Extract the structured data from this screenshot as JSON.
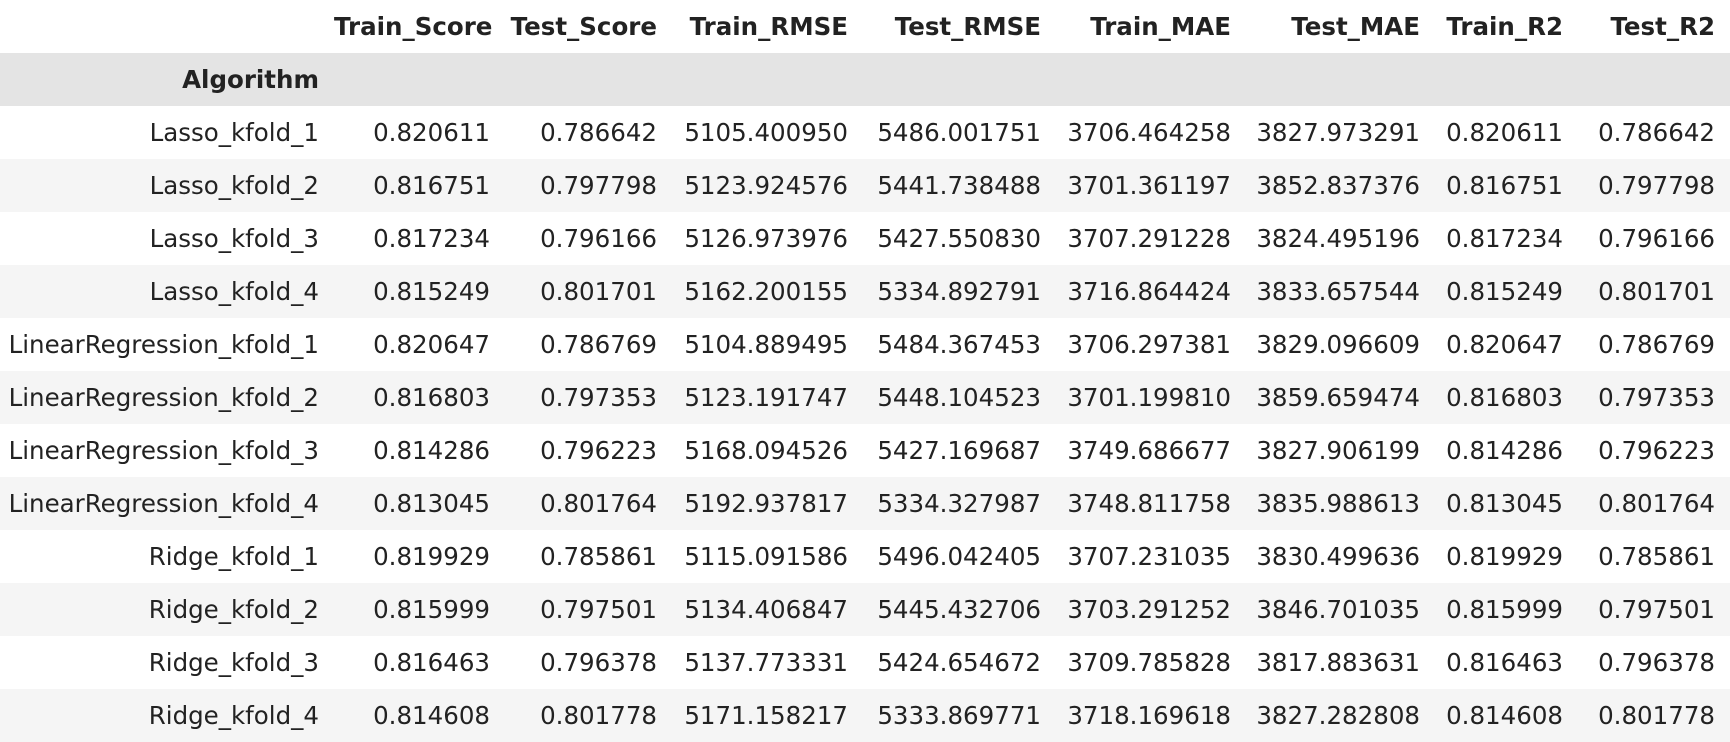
{
  "table": {
    "index_name": "Algorithm",
    "columns": [
      "Train_Score",
      "Test_Score",
      "Train_RMSE",
      "Test_RMSE",
      "Train_MAE",
      "Test_MAE",
      "Train_R2",
      "Test_R2"
    ],
    "rows": [
      {
        "index": "Lasso_kfold_1",
        "values": [
          "0.820611",
          "0.786642",
          "5105.400950",
          "5486.001751",
          "3706.464258",
          "3827.973291",
          "0.820611",
          "0.786642"
        ]
      },
      {
        "index": "Lasso_kfold_2",
        "values": [
          "0.816751",
          "0.797798",
          "5123.924576",
          "5441.738488",
          "3701.361197",
          "3852.837376",
          "0.816751",
          "0.797798"
        ]
      },
      {
        "index": "Lasso_kfold_3",
        "values": [
          "0.817234",
          "0.796166",
          "5126.973976",
          "5427.550830",
          "3707.291228",
          "3824.495196",
          "0.817234",
          "0.796166"
        ]
      },
      {
        "index": "Lasso_kfold_4",
        "values": [
          "0.815249",
          "0.801701",
          "5162.200155",
          "5334.892791",
          "3716.864424",
          "3833.657544",
          "0.815249",
          "0.801701"
        ]
      },
      {
        "index": "LinearRegression_kfold_1",
        "values": [
          "0.820647",
          "0.786769",
          "5104.889495",
          "5484.367453",
          "3706.297381",
          "3829.096609",
          "0.820647",
          "0.786769"
        ]
      },
      {
        "index": "LinearRegression_kfold_2",
        "values": [
          "0.816803",
          "0.797353",
          "5123.191747",
          "5448.104523",
          "3701.199810",
          "3859.659474",
          "0.816803",
          "0.797353"
        ]
      },
      {
        "index": "LinearRegression_kfold_3",
        "values": [
          "0.814286",
          "0.796223",
          "5168.094526",
          "5427.169687",
          "3749.686677",
          "3827.906199",
          "0.814286",
          "0.796223"
        ]
      },
      {
        "index": "LinearRegression_kfold_4",
        "values": [
          "0.813045",
          "0.801764",
          "5192.937817",
          "5334.327987",
          "3748.811758",
          "3835.988613",
          "0.813045",
          "0.801764"
        ]
      },
      {
        "index": "Ridge_kfold_1",
        "values": [
          "0.819929",
          "0.785861",
          "5115.091586",
          "5496.042405",
          "3707.231035",
          "3830.499636",
          "0.819929",
          "0.785861"
        ]
      },
      {
        "index": "Ridge_kfold_2",
        "values": [
          "0.815999",
          "0.797501",
          "5134.406847",
          "5445.432706",
          "3703.291252",
          "3846.701035",
          "0.815999",
          "0.797501"
        ]
      },
      {
        "index": "Ridge_kfold_3",
        "values": [
          "0.816463",
          "0.796378",
          "5137.773331",
          "5424.654672",
          "3709.785828",
          "3817.883631",
          "0.816463",
          "0.796378"
        ]
      },
      {
        "index": "Ridge_kfold_4",
        "values": [
          "0.814608",
          "0.801778",
          "5171.158217",
          "5333.869771",
          "3718.169618",
          "3827.282808",
          "0.814608",
          "0.801778"
        ]
      }
    ]
  },
  "colors": {
    "index_name_row_bg": "#e4e4e4",
    "stripe_bg": "#f5f5f5",
    "text": "#222222"
  }
}
